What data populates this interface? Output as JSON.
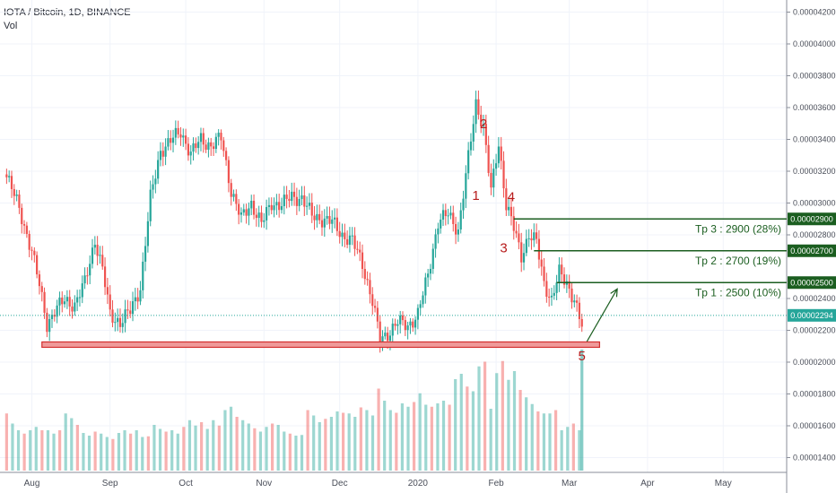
{
  "header": {
    "symbol_line": "IOTA / Bitcoin, 1D, BINANCE",
    "volume_label": "Vol"
  },
  "chart_data": {
    "type": "candlestick",
    "y_axis": {
      "position": "right",
      "ticks": [
        "0.00004200",
        "0.00004000",
        "0.00003800",
        "0.00003600",
        "0.00003400",
        "0.00003200",
        "0.00003000",
        "0.00002800",
        "0.00002400",
        "0.00002200",
        "0.00002000",
        "0.00001800",
        "0.00001600",
        "0.00001400"
      ],
      "tick_values": [
        4200,
        4000,
        3800,
        3600,
        3400,
        3200,
        3000,
        2800,
        2400,
        2200,
        2000,
        1800,
        1600,
        1400
      ],
      "range": [
        1300,
        4300
      ]
    },
    "x_axis": {
      "ticks": [
        "Aug",
        "Sep",
        "Oct",
        "Nov",
        "Dec",
        "2020",
        "Feb",
        "Mar",
        "Apr",
        "May"
      ],
      "tick_days": [
        0,
        31,
        61,
        92,
        122,
        153,
        184,
        213,
        244,
        274
      ],
      "range_days": [
        -10,
        302
      ]
    },
    "price_series": [
      [
        -10,
        3180
      ],
      [
        -5,
        2960
      ],
      [
        0,
        2700
      ],
      [
        3,
        2480
      ],
      [
        6,
        2240
      ],
      [
        9,
        2320
      ],
      [
        13,
        2390
      ],
      [
        17,
        2360
      ],
      [
        21,
        2500
      ],
      [
        25,
        2770
      ],
      [
        28,
        2580
      ],
      [
        31,
        2300
      ],
      [
        35,
        2250
      ],
      [
        39,
        2320
      ],
      [
        43,
        2470
      ],
      [
        47,
        3030
      ],
      [
        51,
        3330
      ],
      [
        55,
        3390
      ],
      [
        59,
        3450
      ],
      [
        63,
        3310
      ],
      [
        67,
        3400
      ],
      [
        71,
        3360
      ],
      [
        75,
        3410
      ],
      [
        79,
        3080
      ],
      [
        83,
        2900
      ],
      [
        87,
        3000
      ],
      [
        91,
        2870
      ],
      [
        95,
        3000
      ],
      [
        99,
        2990
      ],
      [
        103,
        3040
      ],
      [
        107,
        3030
      ],
      [
        111,
        2920
      ],
      [
        115,
        2900
      ],
      [
        119,
        2880
      ],
      [
        123,
        2800
      ],
      [
        127,
        2760
      ],
      [
        131,
        2620
      ],
      [
        135,
        2380
      ],
      [
        138,
        2140
      ],
      [
        141,
        2180
      ],
      [
        145,
        2250
      ],
      [
        149,
        2230
      ],
      [
        153,
        2300
      ],
      [
        157,
        2550
      ],
      [
        161,
        2880
      ],
      [
        165,
        2930
      ],
      [
        169,
        2830
      ],
      [
        173,
        3280
      ],
      [
        176,
        3630
      ],
      [
        179,
        3480
      ],
      [
        182,
        3070
      ],
      [
        185,
        3380
      ],
      [
        188,
        2990
      ],
      [
        191,
        2840
      ],
      [
        194,
        2670
      ],
      [
        197,
        2800
      ],
      [
        200,
        2750
      ],
      [
        203,
        2500
      ],
      [
        206,
        2390
      ],
      [
        209,
        2560
      ],
      [
        212,
        2500
      ],
      [
        215,
        2390
      ],
      [
        218,
        2220
      ]
    ],
    "annotations": {
      "wave_labels": [
        "1",
        "2",
        "3",
        "4",
        "5"
      ],
      "wave_label_points": [
        [
          176,
          3020
        ],
        [
          179,
          3470
        ],
        [
          187,
          2690
        ],
        [
          190,
          3010
        ],
        [
          218,
          2010
        ]
      ],
      "support_level": 2110,
      "support_range_days": [
        4,
        225
      ],
      "current_price": 2294,
      "current_price_label": "0.00002294",
      "arrow": [
        [
          220,
          2130
        ],
        [
          232,
          2460
        ]
      ],
      "targets": [
        {
          "text": "Tp 3 : 2900 (28%)",
          "price": 2900,
          "label": "0.00002900"
        },
        {
          "text": "Tp 2 : 2700 (19%)",
          "price": 2700,
          "label": "0.00002700"
        },
        {
          "text": "Tp 1 : 2500 (10%)",
          "price": 2500,
          "label": "0.00002500"
        }
      ]
    },
    "volume": {
      "values": [
        85,
        70,
        60,
        55,
        60,
        65,
        60,
        60,
        55,
        60,
        85,
        78,
        68,
        56,
        52,
        58,
        55,
        50,
        47,
        56,
        60,
        55,
        60,
        50,
        51,
        68,
        62,
        58,
        60,
        55,
        65,
        75,
        67,
        72,
        62,
        75,
        67,
        90,
        95,
        80,
        75,
        70,
        63,
        58,
        65,
        70,
        68,
        58,
        55,
        52,
        53,
        90,
        82,
        72,
        77,
        80,
        88,
        86,
        85,
        80,
        94,
        90,
        82,
        122,
        104,
        90,
        86,
        100,
        95,
        102,
        115,
        98,
        95,
        100,
        104,
        98,
        136,
        144,
        125,
        118,
        155,
        162,
        92,
        145,
        163,
        135,
        148,
        120,
        109,
        99,
        88,
        85,
        85,
        90,
        60,
        65,
        70,
        60
      ],
      "spike_last": 180
    },
    "colors": {
      "up": "#26a69a",
      "down": "#ef5350",
      "target_line": "#1b5e20",
      "support": "#d32f2f",
      "current_price": "#26a69a",
      "wave": "#b71c1c",
      "grid": "#f0f3fa"
    }
  }
}
